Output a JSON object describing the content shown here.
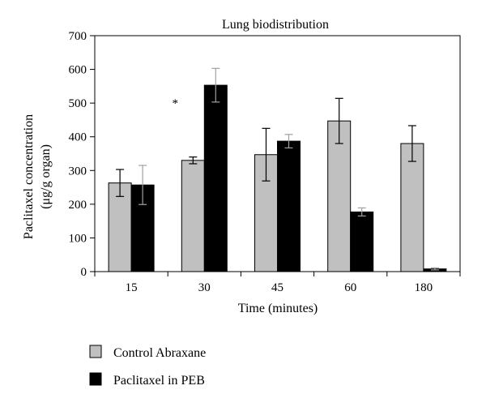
{
  "chart_data": {
    "type": "bar",
    "title": "Lung biodistribution",
    "xlabel": "Time (minutes)",
    "ylabel_line1": "Paclitaxel concentration",
    "ylabel_line2": "(μg/g organ)",
    "categories": [
      "15",
      "30",
      "45",
      "60",
      "180"
    ],
    "ylim": [
      0,
      700
    ],
    "yticks": [
      0,
      100,
      200,
      300,
      400,
      500,
      600,
      700
    ],
    "grid": false,
    "legend_position": "bottom-left",
    "series": [
      {
        "name": "Control Abraxane",
        "color": "#c0c0c0",
        "values": [
          263,
          330,
          347,
          447,
          380
        ],
        "error": [
          40,
          10,
          78,
          67,
          53
        ],
        "error_color": "#000000"
      },
      {
        "name": "Paclitaxel in PEB",
        "color": "#000000",
        "values": [
          257,
          553,
          387,
          177,
          8
        ],
        "error": [
          58,
          50,
          20,
          12,
          3
        ],
        "error_color": "#a0a0a0"
      }
    ],
    "annotations": [
      {
        "text": "*",
        "category": "30"
      }
    ]
  }
}
